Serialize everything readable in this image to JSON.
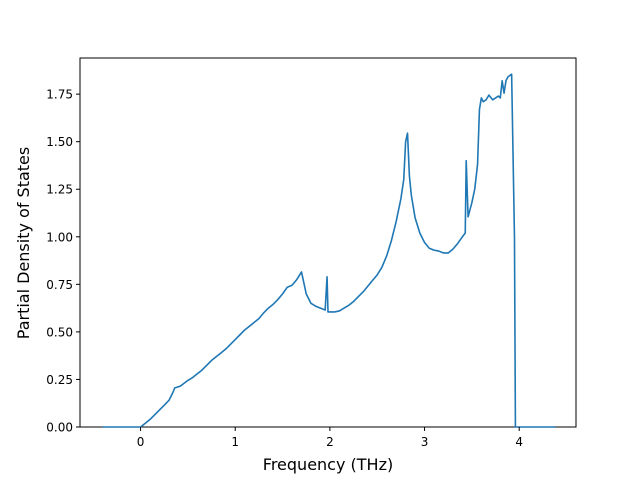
{
  "chart_data": {
    "type": "line",
    "title": "",
    "xlabel": "Frequency (THz)",
    "ylabel": "Partial Density of States",
    "xlim": [
      -0.64,
      4.6
    ],
    "ylim": [
      0.0,
      1.94
    ],
    "xticks": [
      0,
      1,
      2,
      3,
      4
    ],
    "xtick_labels": [
      "0",
      "1",
      "2",
      "3",
      "4"
    ],
    "yticks": [
      0.0,
      0.25,
      0.5,
      0.75,
      1.0,
      1.25,
      1.5,
      1.75
    ],
    "ytick_labels": [
      "0.00",
      "0.25",
      "0.50",
      "0.75",
      "1.00",
      "1.25",
      "1.50",
      "1.75"
    ],
    "grid": false,
    "legend": "none",
    "line_color": "#1f77b4",
    "series": [
      {
        "x": [
          -0.4,
          -0.1,
          0.0,
          0.05,
          0.1,
          0.15,
          0.2,
          0.25,
          0.3,
          0.34,
          0.36,
          0.42,
          0.46,
          0.5,
          0.55,
          0.6,
          0.65,
          0.7,
          0.75,
          0.8,
          0.85,
          0.9,
          0.95,
          1.0,
          1.05,
          1.1,
          1.15,
          1.2,
          1.25,
          1.3,
          1.35,
          1.4,
          1.45,
          1.5,
          1.55,
          1.6,
          1.65,
          1.7,
          1.75,
          1.8,
          1.85,
          1.9,
          1.95,
          1.97,
          1.98,
          2.0,
          2.05,
          2.1,
          2.15,
          2.2,
          2.25,
          2.3,
          2.35,
          2.4,
          2.45,
          2.5,
          2.55,
          2.6,
          2.65,
          2.7,
          2.75,
          2.78,
          2.8,
          2.82,
          2.84,
          2.86,
          2.9,
          2.95,
          3.0,
          3.05,
          3.1,
          3.15,
          3.2,
          3.25,
          3.3,
          3.35,
          3.4,
          3.43,
          3.44,
          3.46,
          3.5,
          3.53,
          3.56,
          3.58,
          3.6,
          3.62,
          3.65,
          3.68,
          3.72,
          3.75,
          3.78,
          3.8,
          3.82,
          3.84,
          3.86,
          3.88,
          3.92,
          3.95,
          3.96,
          3.98,
          4.05,
          4.2,
          4.38
        ],
        "y": [
          0.0,
          0.0,
          0.0,
          0.02,
          0.04,
          0.065,
          0.09,
          0.115,
          0.14,
          0.18,
          0.205,
          0.215,
          0.23,
          0.245,
          0.26,
          0.28,
          0.3,
          0.325,
          0.35,
          0.37,
          0.39,
          0.41,
          0.435,
          0.46,
          0.485,
          0.51,
          0.53,
          0.55,
          0.57,
          0.6,
          0.625,
          0.645,
          0.67,
          0.7,
          0.735,
          0.745,
          0.775,
          0.815,
          0.7,
          0.65,
          0.635,
          0.625,
          0.615,
          0.79,
          0.605,
          0.605,
          0.605,
          0.61,
          0.625,
          0.64,
          0.66,
          0.685,
          0.71,
          0.74,
          0.77,
          0.8,
          0.84,
          0.9,
          0.98,
          1.08,
          1.2,
          1.3,
          1.5,
          1.545,
          1.32,
          1.22,
          1.1,
          1.02,
          0.97,
          0.94,
          0.93,
          0.925,
          0.915,
          0.915,
          0.935,
          0.965,
          1.0,
          1.02,
          1.4,
          1.105,
          1.18,
          1.25,
          1.38,
          1.67,
          1.73,
          1.71,
          1.72,
          1.745,
          1.72,
          1.73,
          1.74,
          1.73,
          1.82,
          1.755,
          1.82,
          1.84,
          1.855,
          1.0,
          0.0,
          0.0,
          0.0,
          0.0,
          0.0
        ]
      }
    ]
  }
}
